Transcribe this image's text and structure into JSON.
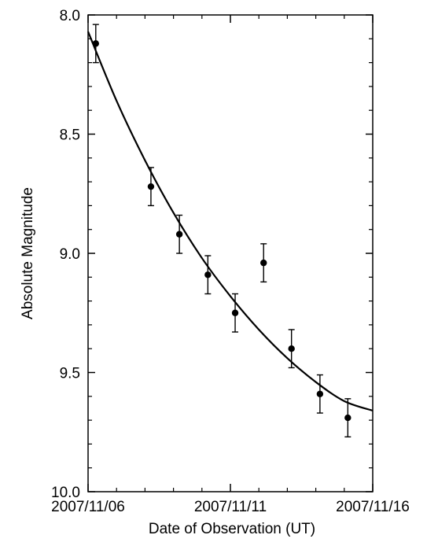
{
  "chart_data": {
    "type": "scatter",
    "title": "",
    "xlabel": "Date of Observation (UT)",
    "ylabel": "Absolute Magnitude",
    "x_ticks": [
      {
        "value": "2007/11/06",
        "label": "2007/11/06"
      },
      {
        "value": "2007/11/11",
        "label": "2007/11/11"
      },
      {
        "value": "2007/11/16",
        "label": "2007/11/16"
      }
    ],
    "x_range": [
      "2007/11/06",
      "2007/11/16"
    ],
    "y_ticks": [
      {
        "value": 8.0,
        "label": "8.0"
      },
      {
        "value": 8.5,
        "label": "8.5"
      },
      {
        "value": 9.0,
        "label": "9.0"
      },
      {
        "value": 9.5,
        "label": "9.5"
      },
      {
        "value": 10.0,
        "label": "10.0"
      }
    ],
    "ylim": [
      10.0,
      8.0
    ],
    "y_inverted": true,
    "grid": false,
    "points": [
      {
        "x": "2007/11/06 06:30",
        "y": 8.12,
        "err": 0.08
      },
      {
        "x": "2007/11/08 05:00",
        "y": 8.72,
        "err": 0.08
      },
      {
        "x": "2007/11/09 05:00",
        "y": 8.92,
        "err": 0.08
      },
      {
        "x": "2007/11/10 05:00",
        "y": 9.09,
        "err": 0.08
      },
      {
        "x": "2007/11/11 04:00",
        "y": 9.25,
        "err": 0.08
      },
      {
        "x": "2007/11/12 04:00",
        "y": 9.04,
        "err": 0.08
      },
      {
        "x": "2007/11/13 03:30",
        "y": 9.4,
        "err": 0.08
      },
      {
        "x": "2007/11/14 03:30",
        "y": 9.59,
        "err": 0.08
      },
      {
        "x": "2007/11/15 03:00",
        "y": 9.69,
        "err": 0.08
      }
    ],
    "fit_curve": [
      {
        "x": "2007/11/06 00:00",
        "y": 8.07
      },
      {
        "x": "2007/11/07 00:00",
        "y": 8.36
      },
      {
        "x": "2007/11/08 00:00",
        "y": 8.61
      },
      {
        "x": "2007/11/09 00:00",
        "y": 8.83
      },
      {
        "x": "2007/11/10 00:00",
        "y": 9.02
      },
      {
        "x": "2007/11/11 00:00",
        "y": 9.18
      },
      {
        "x": "2007/11/12 00:00",
        "y": 9.32
      },
      {
        "x": "2007/11/13 00:00",
        "y": 9.44
      },
      {
        "x": "2007/11/14 00:00",
        "y": 9.54
      },
      {
        "x": "2007/11/15 00:00",
        "y": 9.62
      },
      {
        "x": "2007/11/16 00:00",
        "y": 9.66
      }
    ]
  }
}
